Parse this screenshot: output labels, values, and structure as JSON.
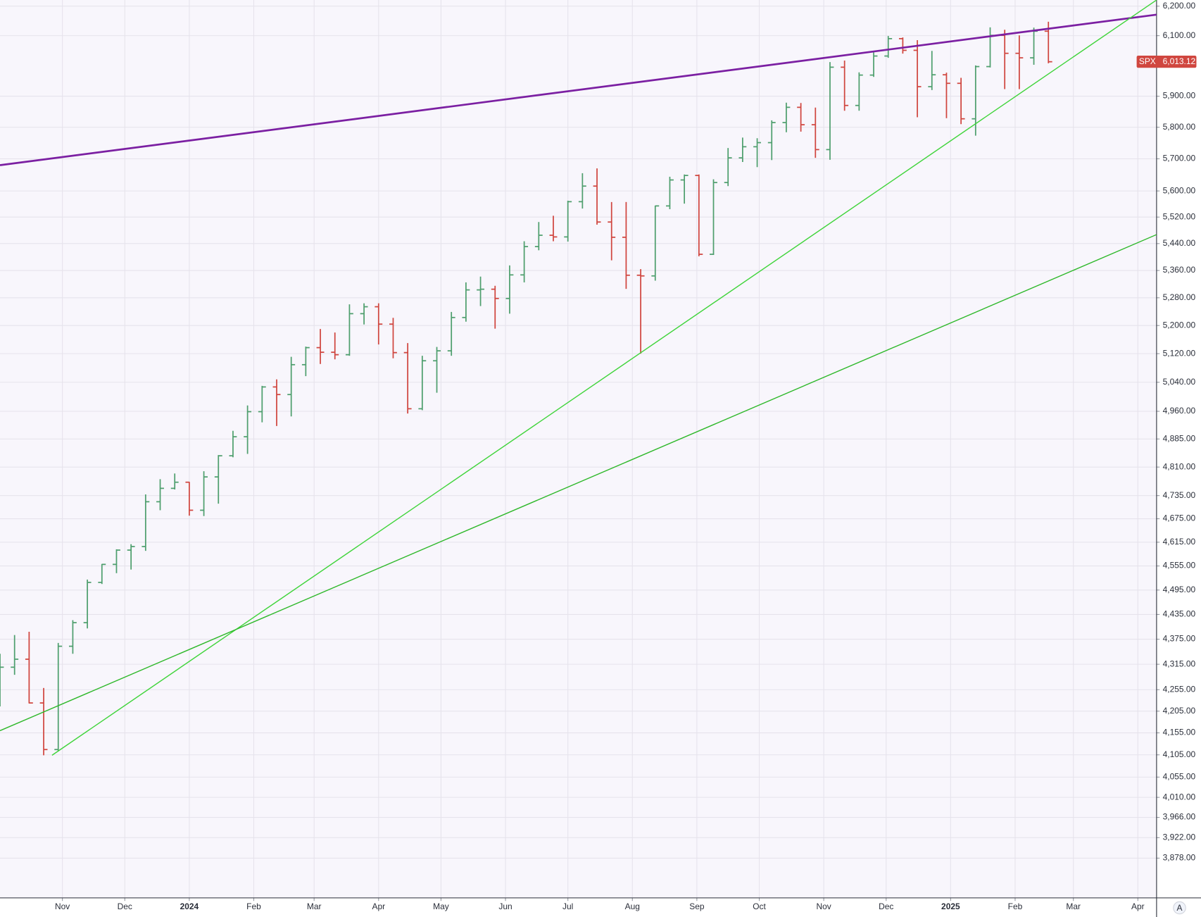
{
  "chart_data": {
    "type": "ohlc",
    "log_scale": true,
    "grid": true,
    "up_color": "#4f9f6e",
    "down_color": "#d0463f",
    "x": [
      "2023-10-02",
      "2023-10-09",
      "2023-10-16",
      "2023-10-23",
      "2023-10-30",
      "2023-11-06",
      "2023-11-13",
      "2023-11-20",
      "2023-11-27",
      "2023-12-04",
      "2023-12-11",
      "2023-12-18",
      "2023-12-25",
      "2024-01-01",
      "2024-01-08",
      "2024-01-15",
      "2024-01-22",
      "2024-01-29",
      "2024-02-05",
      "2024-02-12",
      "2024-02-19",
      "2024-02-26",
      "2024-03-04",
      "2024-03-11",
      "2024-03-18",
      "2024-03-25",
      "2024-04-01",
      "2024-04-08",
      "2024-04-15",
      "2024-04-22",
      "2024-04-29",
      "2024-05-06",
      "2024-05-13",
      "2024-05-20",
      "2024-05-27",
      "2024-06-03",
      "2024-06-10",
      "2024-06-17",
      "2024-06-24",
      "2024-07-01",
      "2024-07-08",
      "2024-07-15",
      "2024-07-22",
      "2024-07-29",
      "2024-08-05",
      "2024-08-12",
      "2024-08-19",
      "2024-08-26",
      "2024-09-02",
      "2024-09-09",
      "2024-09-16",
      "2024-09-23",
      "2024-09-30",
      "2024-10-07",
      "2024-10-14",
      "2024-10-21",
      "2024-10-28",
      "2024-11-04",
      "2024-11-11",
      "2024-11-18",
      "2024-11-25",
      "2024-12-02",
      "2024-12-09",
      "2024-12-16",
      "2024-12-23",
      "2024-12-30",
      "2025-01-06",
      "2025-01-13",
      "2025-01-20",
      "2025-01-27",
      "2025-02-03",
      "2025-02-10",
      "2025-02-17"
    ],
    "open": [
      4288,
      4308,
      4327,
      4224,
      4117,
      4358,
      4415,
      4514,
      4559,
      4595,
      4604,
      4719,
      4754,
      4770,
      4697,
      4784,
      4840,
      4891,
      4959,
      5027,
      5006,
      5089,
      5137,
      5124,
      5117,
      5234,
      5254,
      5204,
      5123,
      4967,
      5100,
      5128,
      5223,
      5303,
      5305,
      5278,
      5347,
      5431,
      5465,
      5460,
      5567,
      5615,
      5505,
      5459,
      5346,
      5344,
      5554,
      5634,
      5648,
      5408,
      5626,
      5703,
      5738,
      5751,
      5815,
      5864,
      5808,
      5729,
      5995,
      5870,
      5969,
      6032,
      6090,
      6051,
      5931,
      5970,
      5942,
      5827,
      5997,
      6101,
      6041,
      6026,
      6115
    ],
    "high": [
      4340,
      4385,
      4393,
      4259,
      4366,
      4421,
      4521,
      4560,
      4597,
      4610,
      4738,
      4778,
      4793,
      4771,
      4799,
      4842,
      4907,
      4976,
      5030,
      5048,
      5111,
      5140,
      5190,
      5180,
      5261,
      5264,
      5264,
      5222,
      5150,
      5114,
      5139,
      5239,
      5325,
      5342,
      5315,
      5375,
      5447,
      5505,
      5524,
      5570,
      5655,
      5670,
      5566,
      5566,
      5364,
      5555,
      5644,
      5651,
      5651,
      5636,
      5734,
      5767,
      5765,
      5822,
      5879,
      5878,
      5863,
      6012,
      6017,
      5978,
      6044,
      6099,
      6094,
      6085,
      6049,
      5977,
      5960,
      6001,
      6128,
      6120,
      6101,
      6127,
      6147
    ],
    "low": [
      4216,
      4290,
      4223,
      4104,
      4113,
      4340,
      4401,
      4510,
      4537,
      4546,
      4593,
      4697,
      4751,
      4683,
      4682,
      4714,
      4836,
      4845,
      4930,
      4920,
      4946,
      5057,
      5091,
      5104,
      5114,
      5203,
      5146,
      5107,
      4954,
      4963,
      5011,
      5114,
      5211,
      5256,
      5191,
      5234,
      5325,
      5420,
      5447,
      5446,
      5546,
      5497,
      5390,
      5306,
      5120,
      5330,
      5544,
      5561,
      5402,
      5406,
      5615,
      5690,
      5674,
      5696,
      5784,
      5786,
      5703,
      5697,
      5853,
      5853,
      5963,
      6026,
      6040,
      5832,
      5920,
      5829,
      5810,
      5773,
      5994,
      5923,
      5923,
      6003,
      6008
    ],
    "close": [
      4308,
      4327,
      4224,
      4117,
      4358,
      4415,
      4514,
      4559,
      4595,
      4604,
      4719,
      4754,
      4770,
      4697,
      4784,
      4840,
      4891,
      4959,
      5027,
      5006,
      5089,
      5137,
      5124,
      5117,
      5234,
      5254,
      5204,
      5123,
      4967,
      5100,
      5128,
      5223,
      5303,
      5305,
      5278,
      5347,
      5431,
      5465,
      5460,
      5567,
      5615,
      5505,
      5459,
      5346,
      5344,
      5554,
      5634,
      5648,
      5408,
      5626,
      5703,
      5738,
      5751,
      5815,
      5864,
      5808,
      5729,
      5995,
      5870,
      5969,
      6032,
      6090,
      6051,
      5931,
      5970,
      5942,
      5827,
      5997,
      6101,
      6041,
      6026,
      6115,
      6013
    ],
    "xlim": [
      "2023-10-02",
      "2025-04-10"
    ],
    "ylim": [
      3794,
      6221
    ],
    "xticks": [
      {
        "value": "2023-11-01",
        "label": "Nov"
      },
      {
        "value": "2023-12-01",
        "label": "Dec"
      },
      {
        "value": "2024-01-01",
        "label": "2024"
      },
      {
        "value": "2024-02-01",
        "label": "Feb"
      },
      {
        "value": "2024-03-01",
        "label": "Mar"
      },
      {
        "value": "2024-04-01",
        "label": "Apr"
      },
      {
        "value": "2024-05-01",
        "label": "May"
      },
      {
        "value": "2024-06-01",
        "label": "Jun"
      },
      {
        "value": "2024-07-01",
        "label": "Jul"
      },
      {
        "value": "2024-08-01",
        "label": "Aug"
      },
      {
        "value": "2024-09-01",
        "label": "Sep"
      },
      {
        "value": "2024-10-01",
        "label": "Oct"
      },
      {
        "value": "2024-11-01",
        "label": "Nov"
      },
      {
        "value": "2024-12-01",
        "label": "Dec"
      },
      {
        "value": "2025-01-01",
        "label": "2025"
      },
      {
        "value": "2025-02-01",
        "label": "Feb"
      },
      {
        "value": "2025-03-01",
        "label": "Mar"
      },
      {
        "value": "2025-04-01",
        "label": "Apr"
      }
    ],
    "yticks": [
      {
        "value": 6200,
        "label": "6,200.00"
      },
      {
        "value": 6100,
        "label": "6,100.00"
      },
      {
        "value": 5900,
        "label": "5,900.00"
      },
      {
        "value": 5800,
        "label": "5,800.00"
      },
      {
        "value": 5700,
        "label": "5,700.00"
      },
      {
        "value": 5600,
        "label": "5,600.00"
      },
      {
        "value": 5520,
        "label": "5,520.00"
      },
      {
        "value": 5440,
        "label": "5,440.00"
      },
      {
        "value": 5360,
        "label": "5,360.00"
      },
      {
        "value": 5280,
        "label": "5,280.00"
      },
      {
        "value": 5200,
        "label": "5,200.00"
      },
      {
        "value": 5120,
        "label": "5,120.00"
      },
      {
        "value": 5040,
        "label": "5,040.00"
      },
      {
        "value": 4960,
        "label": "4,960.00"
      },
      {
        "value": 4885,
        "label": "4,885.00"
      },
      {
        "value": 4810,
        "label": "4,810.00"
      },
      {
        "value": 4735,
        "label": "4,735.00"
      },
      {
        "value": 4675,
        "label": "4,675.00"
      },
      {
        "value": 4615,
        "label": "4,615.00"
      },
      {
        "value": 4555,
        "label": "4,555.00"
      },
      {
        "value": 4495,
        "label": "4,495.00"
      },
      {
        "value": 4435,
        "label": "4,435.00"
      },
      {
        "value": 4375,
        "label": "4,375.00"
      },
      {
        "value": 4315,
        "label": "4,315.00"
      },
      {
        "value": 4255,
        "label": "4,255.00"
      },
      {
        "value": 4205,
        "label": "4,205.00"
      },
      {
        "value": 4155,
        "label": "4,155.00"
      },
      {
        "value": 4105,
        "label": "4,105.00"
      },
      {
        "value": 4055,
        "label": "4,055.00"
      },
      {
        "value": 4010,
        "label": "4,010.00"
      },
      {
        "value": 3966,
        "label": "3,966.00"
      },
      {
        "value": 3922,
        "label": "3,922.00"
      },
      {
        "value": 3878,
        "label": "3,878.00"
      }
    ],
    "trendlines": [
      {
        "color": "#7b1fa2",
        "width": 2.5,
        "points": [
          {
            "x": "2023-10-02",
            "y": 5680
          },
          {
            "x": "2025-04-10",
            "y": 6171
          }
        ]
      },
      {
        "color": "#3fd43a",
        "width": 1.3,
        "points": [
          {
            "x": "2023-10-27",
            "y": 4104
          },
          {
            "x": "2025-04-10",
            "y": 6221
          }
        ]
      },
      {
        "color": "#2eb82a",
        "width": 1.3,
        "points": [
          {
            "x": "2023-10-02",
            "y": 4160
          },
          {
            "x": "2025-04-10",
            "y": 5467
          }
        ]
      }
    ],
    "last_price": {
      "symbol": "SPX",
      "value": 6013.12,
      "label": "6,013.12",
      "color": "#d0463f"
    },
    "scale_button": "A"
  }
}
